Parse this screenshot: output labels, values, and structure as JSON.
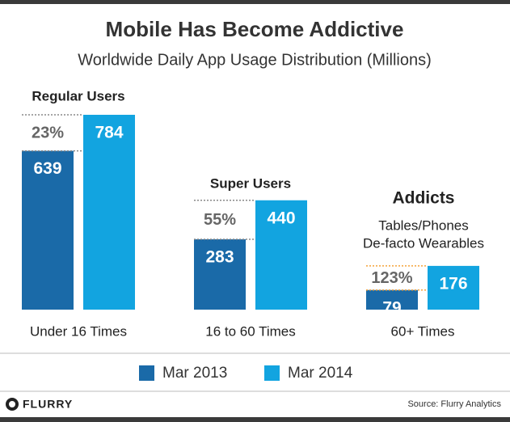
{
  "chart_data": {
    "type": "bar",
    "title": "Mobile Has Become Addictive",
    "subtitle": "Worldwide Daily App Usage Distribution (Millions)",
    "categories": [
      "Under 16 Times",
      "16 to 60 Times",
      "60+ Times"
    ],
    "series": [
      {
        "name": "Mar 2013",
        "color": "#1a6aa8",
        "values": [
          639,
          283,
          79
        ]
      },
      {
        "name": "Mar 2014",
        "color": "#12a4e0",
        "values": [
          784,
          440,
          176
        ]
      }
    ],
    "group_labels": [
      "Regular Users",
      "Super Users",
      "Addicts"
    ],
    "group_notes": [
      "Tables/Phones",
      "De-facto Wearables"
    ],
    "growth_labels": [
      "23%",
      "55%",
      "123%"
    ],
    "accent_color": "#f5a23a",
    "brand": "FLURRY",
    "source": "Source: Flurry Analytics"
  }
}
